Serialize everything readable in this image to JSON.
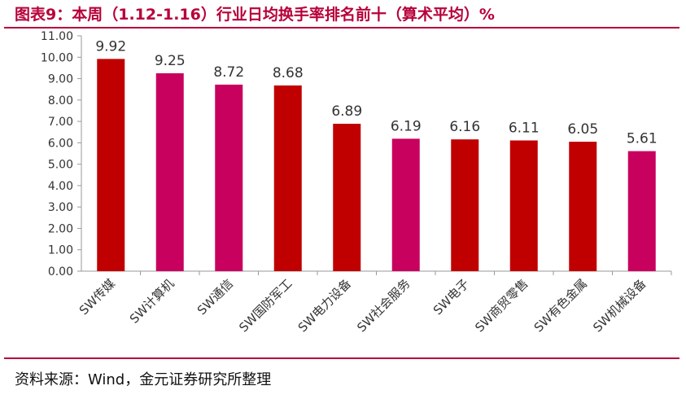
{
  "title": "图表9：本周（1.12-1.16）行业日均换手率排名前十（算术平均）%",
  "source": "资料来源：Wind，金元证券研究所整理",
  "colors": {
    "accent": "#b8003a",
    "red": "#c00000",
    "magenta": "#c8005e",
    "axis": "#999999"
  },
  "chart_data": {
    "type": "bar",
    "title": "图表9：本周（1.12-1.16）行业日均换手率排名前十（算术平均）%",
    "categories": [
      "SW传媒",
      "SW计算机",
      "SW通信",
      "SW国防军工",
      "SW电力设备",
      "SW社会服务",
      "SW电子",
      "SW商贸零售",
      "SW有色金属",
      "SW机械设备"
    ],
    "values": [
      9.92,
      9.25,
      8.72,
      8.68,
      6.89,
      6.19,
      6.16,
      6.11,
      6.05,
      5.61
    ],
    "value_labels": [
      "9.92",
      "9.25",
      "8.72",
      "8.68",
      "6.89",
      "6.19",
      "6.16",
      "6.11",
      "6.05",
      "5.61"
    ],
    "bar_colors": [
      "#c00000",
      "#c8005e",
      "#c8005e",
      "#c00000",
      "#c00000",
      "#c8005e",
      "#c00000",
      "#c00000",
      "#c00000",
      "#c8005e"
    ],
    "ylim": [
      0,
      11
    ],
    "yticks": [
      "0.00",
      "1.00",
      "2.00",
      "3.00",
      "4.00",
      "5.00",
      "6.00",
      "7.00",
      "8.00",
      "9.00",
      "10.00",
      "11.00"
    ],
    "xlabel": "",
    "ylabel": "",
    "grid": false,
    "legend": "none"
  }
}
